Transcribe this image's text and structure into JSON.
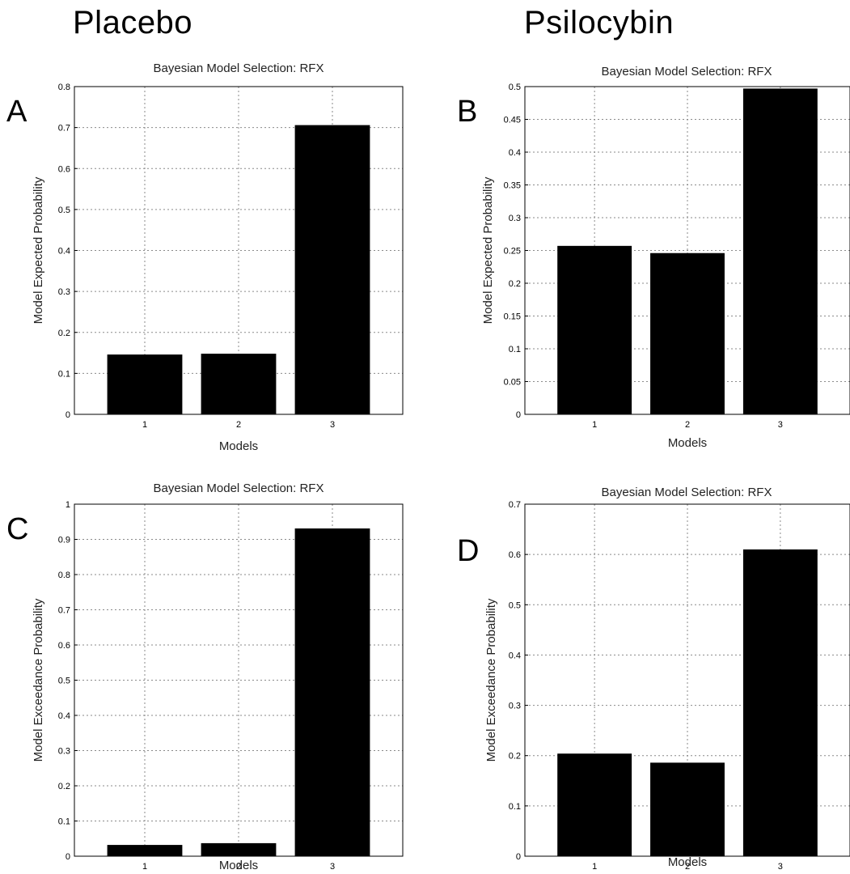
{
  "figure": {
    "col_titles": [
      "Placebo",
      "Psilocybin"
    ]
  },
  "chart_data": [
    {
      "type": "bar",
      "panel": "A",
      "title": "Bayesian Model Selection: RFX",
      "xlabel": "Models",
      "ylabel": "Model Expected Probability",
      "categories": [
        "1",
        "2",
        "3"
      ],
      "values": [
        0.146,
        0.148,
        0.706
      ],
      "ylim": [
        0,
        0.8
      ],
      "yticks": [
        "0",
        "0.1",
        "0.2",
        "0.3",
        "0.4",
        "0.5",
        "0.6",
        "0.7",
        "0.8"
      ],
      "grid": true,
      "bar_color": "#000000"
    },
    {
      "type": "bar",
      "panel": "B",
      "title": "Bayesian Model Selection: RFX",
      "xlabel": "Models",
      "ylabel": "Model Expected Probability",
      "categories": [
        "1",
        "2",
        "3"
      ],
      "values": [
        0.257,
        0.246,
        0.497
      ],
      "ylim": [
        0,
        0.5
      ],
      "yticks": [
        "0",
        "0.05",
        "0.1",
        "0.15",
        "0.2",
        "0.25",
        "0.3",
        "0.35",
        "0.4",
        "0.45",
        "0.5"
      ],
      "grid": true,
      "bar_color": "#000000"
    },
    {
      "type": "bar",
      "panel": "C",
      "title": "Bayesian Model Selection: RFX",
      "xlabel": "Models",
      "ylabel": "Model Exceedance Probability",
      "categories": [
        "1",
        "2",
        "3"
      ],
      "values": [
        0.032,
        0.037,
        0.931
      ],
      "ylim": [
        0,
        1
      ],
      "yticks": [
        "0",
        "0.1",
        "0.2",
        "0.3",
        "0.4",
        "0.5",
        "0.6",
        "0.7",
        "0.8",
        "0.9",
        "1"
      ],
      "grid": true,
      "bar_color": "#000000"
    },
    {
      "type": "bar",
      "panel": "D",
      "title": "Bayesian Model Selection: RFX",
      "xlabel": "Models",
      "ylabel": "Model Exceedance Probability",
      "categories": [
        "1",
        "2",
        "3"
      ],
      "values": [
        0.204,
        0.186,
        0.61
      ],
      "ylim": [
        0,
        0.7
      ],
      "yticks": [
        "0",
        "0.1",
        "0.2",
        "0.3",
        "0.4",
        "0.5",
        "0.6",
        "0.7"
      ],
      "grid": true,
      "bar_color": "#000000"
    }
  ]
}
